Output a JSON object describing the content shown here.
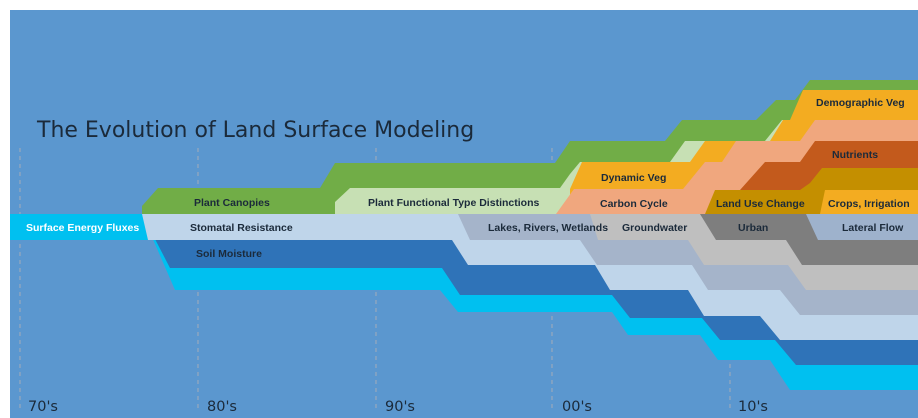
{
  "title": "The Evolution of Land Surface Modeling",
  "decades": [
    "70's",
    "80's",
    "90's",
    "00's",
    "10's"
  ],
  "colors": {
    "background": "#5b97cf",
    "green": "#71ad47",
    "light_green": "#c7e0b4",
    "orange": "#f3ac21",
    "salmon": "#f0a77e",
    "dark_orange": "#c35a1c",
    "gold": "#c48f00",
    "dark_gray": "#7e7e7e",
    "light_blue": "#bfd5ea",
    "gray_blue": "#a5b4ca",
    "light_gray": "#bfbfbf",
    "dark_blue": "#2f73b8",
    "cyan": "#00c0f0"
  },
  "labels": {
    "surface_energy_fluxes": "Surface Energy Fluxes",
    "plant_canopies": "Plant Canopies",
    "stomatal_resistance": "Stomatal Resistance",
    "soil_moisture": "Soil Moisture",
    "plant_functional_type": "Plant Functional Type Distinctions",
    "lakes_rivers_wetlands": "Lakes, Rivers, Wetlands",
    "dynamic_veg": "Dynamic Veg",
    "carbon_cycle": "Carbon Cycle",
    "groundwater": "Groundwater",
    "demographic_veg": "Demographic Veg",
    "nutrients": "Nutrients",
    "land_use_change": "Land Use Change",
    "crops_irrigation": "Crops, Irrigation",
    "urban": "Urban",
    "lateral_flow": "Lateral Flow"
  }
}
